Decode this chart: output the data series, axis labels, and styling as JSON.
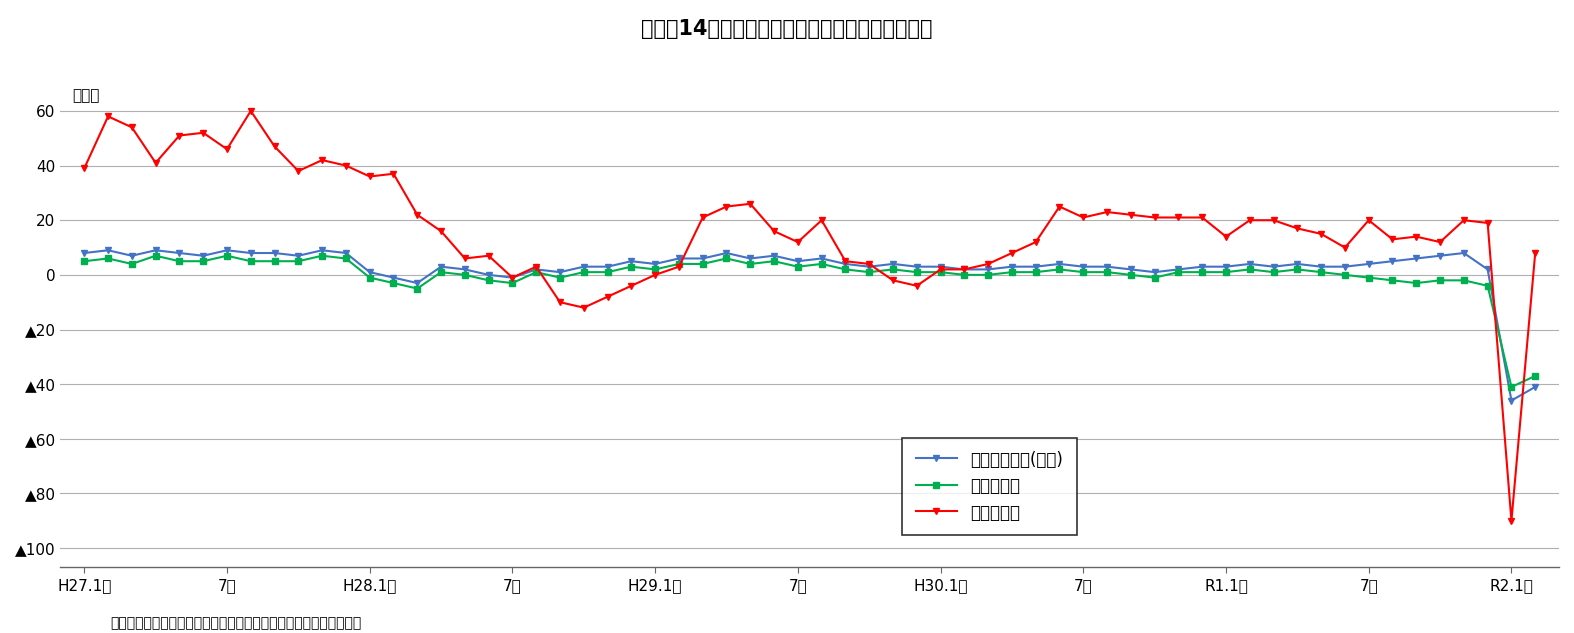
{
  "title": "図表－14　延べ宿泊者数の推移（月次、前年比）",
  "ylabel": "（％）",
  "source_text": "（出所）「宿泊旅行統計調査」をもとにニッセイ基礎研究所が作成",
  "legend_labels": [
    "延べ宿泊者数(全体)",
    "うち日本人",
    "うち外国人"
  ],
  "colors": [
    "#4472c4",
    "#00b050",
    "#ff0000"
  ],
  "xtick_labels": [
    "H27.1月",
    "7月",
    "H28.1月",
    "7月",
    "H29.1月",
    "7月",
    "H30.1月",
    "7月",
    "R1.1月",
    "7月",
    "R2.1月"
  ],
  "xtick_positions": [
    0,
    6,
    12,
    18,
    24,
    30,
    36,
    42,
    48,
    54,
    60
  ],
  "ytick_labels": [
    "60",
    "40",
    "20",
    "0",
    "▲20",
    "▲40",
    "▲60",
    "▲80",
    "▲100"
  ],
  "ytick_values": [
    60,
    40,
    20,
    0,
    -20,
    -40,
    -60,
    -80,
    -100
  ],
  "ylim": [
    -107,
    68
  ],
  "series_total": [
    8,
    9,
    7,
    9,
    8,
    7,
    9,
    8,
    8,
    7,
    9,
    8,
    1,
    -1,
    -3,
    3,
    2,
    0,
    -1,
    2,
    1,
    3,
    3,
    5,
    4,
    6,
    6,
    8,
    6,
    7,
    5,
    6,
    4,
    3,
    4,
    3,
    3,
    2,
    2,
    3,
    3,
    4,
    3,
    3,
    2,
    1,
    2,
    3,
    3,
    4,
    3,
    4,
    3,
    3,
    4,
    5,
    6,
    7,
    8,
    2,
    -46,
    -41
  ],
  "series_japanese": [
    5,
    6,
    4,
    7,
    5,
    5,
    7,
    5,
    5,
    5,
    7,
    6,
    -1,
    -3,
    -5,
    1,
    0,
    -2,
    -3,
    1,
    -1,
    1,
    1,
    3,
    2,
    4,
    4,
    6,
    4,
    5,
    3,
    4,
    2,
    1,
    2,
    1,
    1,
    0,
    0,
    1,
    1,
    2,
    1,
    1,
    0,
    -1,
    1,
    1,
    1,
    2,
    1,
    2,
    1,
    0,
    -1,
    -2,
    -3,
    -2,
    -2,
    -4,
    -41,
    -37
  ],
  "series_foreign": [
    39,
    58,
    54,
    41,
    51,
    52,
    46,
    60,
    47,
    38,
    42,
    40,
    36,
    37,
    22,
    16,
    6,
    7,
    -1,
    3,
    -10,
    -12,
    -8,
    -4,
    0,
    3,
    21,
    25,
    26,
    16,
    12,
    20,
    5,
    4,
    -2,
    -4,
    2,
    2,
    4,
    8,
    12,
    25,
    21,
    23,
    22,
    21,
    21,
    21,
    14,
    20,
    20,
    17,
    15,
    10,
    20,
    13,
    14,
    12,
    20,
    19,
    -90,
    8
  ],
  "background_color": "#ffffff",
  "grid_color": "#b0b0b0",
  "title_fontsize": 15,
  "axis_fontsize": 11,
  "legend_fontsize": 12
}
